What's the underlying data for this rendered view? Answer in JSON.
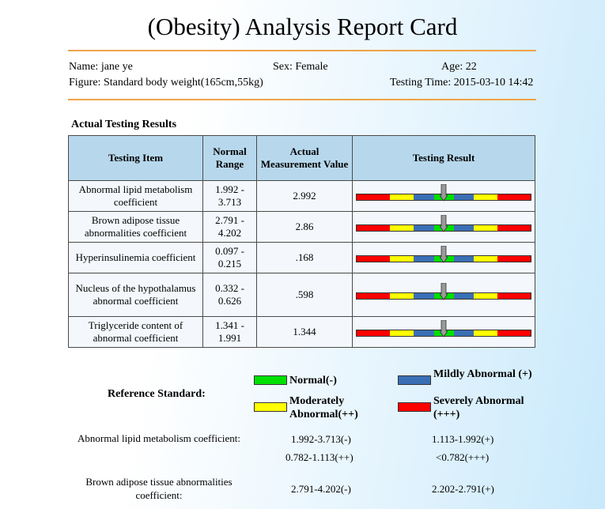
{
  "title": "(Obesity) Analysis Report Card",
  "info": {
    "name": "Name: jane ye",
    "sex": "Sex: Female",
    "age": "Age: 22",
    "figure": "Figure: Standard body weight(165cm,55kg)",
    "testing_time": "Testing Time: 2015-03-10 14:42"
  },
  "section_title": "Actual Testing Results",
  "table": {
    "headers": [
      "Testing Item",
      "Normal Range",
      "Actual Measurement Value",
      "Testing Result"
    ],
    "rows": [
      {
        "item": "Abnormal lipid metabolism coefficient",
        "range": "1.992 - 3.713",
        "value": "2.992",
        "level": 0.5
      },
      {
        "item": "Brown adipose tissue abnormalities coefficient",
        "range": "2.791 - 4.202",
        "value": "2.86",
        "level": 0.5
      },
      {
        "item": "Hyperinsulinemia coefficient",
        "range": "0.097 - 0.215",
        "value": ".168",
        "level": 0.5
      },
      {
        "item": "Nucleus of the hypothalamus abnormal coefficient",
        "range": "0.332 - 0.626",
        "value": ".598",
        "level": 0.5
      },
      {
        "item": "Triglyceride content of abnormal coefficient",
        "range": "1.341 - 1.991",
        "value": "1.344",
        "level": 0.5
      }
    ]
  },
  "gauge_colors": {
    "red": "#ff0000",
    "yellow": "#ffff00",
    "blue": "#3a6fb5",
    "green": "#00e000"
  },
  "reference": {
    "label": "Reference Standard:",
    "legend": {
      "normal": "Normal(-)",
      "mild": "Mildly Abnormal (+)",
      "moderate": "Moderately Abnormal(++)",
      "severe": "Severely Abnormal (+++)"
    },
    "rows": [
      {
        "name": "Abnormal lipid metabolism coefficient:",
        "normal": "1.992-3.713(-)",
        "mild": "1.113-1.992(+)",
        "moderate": "0.782-1.113(++)",
        "severe": "<0.782(+++)"
      },
      {
        "name": "Brown adipose tissue abnormalities coefficient:",
        "normal": "2.791-4.202(-)",
        "mild": "2.202-2.791(+)",
        "moderate": "",
        "severe": ""
      }
    ]
  },
  "accent_color": "#f0a24a"
}
